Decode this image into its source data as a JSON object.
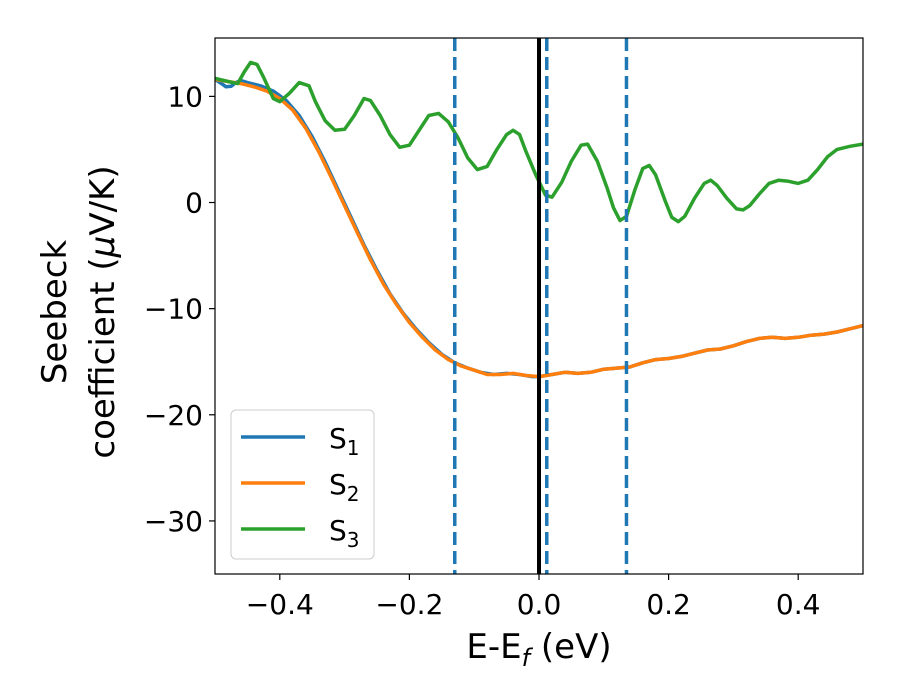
{
  "chart_data": {
    "type": "line",
    "title": "",
    "xlabel": "E-E",
    "xlabel_sub": "f",
    "xlabel_unit": " (eV)",
    "ylabel_line1": "Seebeck",
    "ylabel_line2": "coefficient  (",
    "ylabel_mu": "μ",
    "ylabel_unit_tail": "V/K)",
    "xlim": [
      -0.5,
      0.5
    ],
    "ylim": [
      -35,
      15.5
    ],
    "xticks": [
      -0.4,
      -0.2,
      0.0,
      0.2,
      0.4
    ],
    "xtick_labels": [
      "−0.4",
      "−0.2",
      "0.0",
      "0.2",
      "0.4"
    ],
    "yticks": [
      -30,
      -20,
      -10,
      0,
      10
    ],
    "ytick_labels": [
      "−30",
      "−20",
      "−10",
      "0",
      "10"
    ],
    "legend_position": "lower-left",
    "series": [
      {
        "name": "S",
        "sub": "1",
        "color": "#1f77b4",
        "points": [
          [
            -0.5,
            11.6
          ],
          [
            -0.49,
            11.2
          ],
          [
            -0.483,
            10.9
          ],
          [
            -0.475,
            10.95
          ],
          [
            -0.468,
            11.3
          ],
          [
            -0.46,
            11.5
          ],
          [
            -0.45,
            11.3
          ],
          [
            -0.43,
            11.0
          ],
          [
            -0.41,
            10.5
          ],
          [
            -0.39,
            9.6
          ],
          [
            -0.37,
            8.2
          ],
          [
            -0.35,
            6.2
          ],
          [
            -0.33,
            3.8
          ],
          [
            -0.31,
            1.2
          ],
          [
            -0.29,
            -1.4
          ],
          [
            -0.27,
            -4.0
          ],
          [
            -0.25,
            -6.4
          ],
          [
            -0.23,
            -8.6
          ],
          [
            -0.21,
            -10.4
          ],
          [
            -0.19,
            -11.9
          ],
          [
            -0.17,
            -13.2
          ],
          [
            -0.15,
            -14.3
          ],
          [
            -0.13,
            -15.1
          ],
          [
            -0.11,
            -15.6
          ],
          [
            -0.09,
            -16.0
          ],
          [
            -0.07,
            -16.2
          ],
          [
            -0.05,
            -16.1
          ],
          [
            -0.03,
            -16.2
          ],
          [
            -0.01,
            -16.4
          ],
          [
            0.0,
            -16.4
          ],
          [
            0.02,
            -16.2
          ],
          [
            0.04,
            -16.0
          ],
          [
            0.06,
            -16.1
          ],
          [
            0.08,
            -16.0
          ],
          [
            0.1,
            -15.7
          ],
          [
            0.12,
            -15.6
          ],
          [
            0.14,
            -15.5
          ],
          [
            0.16,
            -15.1
          ],
          [
            0.18,
            -14.8
          ],
          [
            0.2,
            -14.7
          ],
          [
            0.22,
            -14.5
          ],
          [
            0.24,
            -14.2
          ],
          [
            0.26,
            -13.9
          ],
          [
            0.28,
            -13.8
          ],
          [
            0.3,
            -13.5
          ],
          [
            0.32,
            -13.1
          ],
          [
            0.34,
            -12.8
          ],
          [
            0.36,
            -12.7
          ],
          [
            0.38,
            -12.8
          ],
          [
            0.4,
            -12.7
          ],
          [
            0.42,
            -12.5
          ],
          [
            0.44,
            -12.4
          ],
          [
            0.46,
            -12.2
          ],
          [
            0.48,
            -11.9
          ],
          [
            0.5,
            -11.6
          ]
        ]
      },
      {
        "name": "S",
        "sub": "2",
        "color": "#ff7f0e",
        "points": [
          [
            -0.5,
            11.6
          ],
          [
            -0.48,
            11.4
          ],
          [
            -0.46,
            11.2
          ],
          [
            -0.44,
            10.9
          ],
          [
            -0.42,
            10.5
          ],
          [
            -0.4,
            9.8
          ],
          [
            -0.38,
            8.7
          ],
          [
            -0.36,
            7.0
          ],
          [
            -0.34,
            4.8
          ],
          [
            -0.32,
            2.3
          ],
          [
            -0.3,
            -0.3
          ],
          [
            -0.28,
            -2.9
          ],
          [
            -0.26,
            -5.4
          ],
          [
            -0.24,
            -7.7
          ],
          [
            -0.22,
            -9.6
          ],
          [
            -0.2,
            -11.3
          ],
          [
            -0.18,
            -12.7
          ],
          [
            -0.16,
            -13.9
          ],
          [
            -0.14,
            -14.8
          ],
          [
            -0.12,
            -15.4
          ],
          [
            -0.1,
            -15.8
          ],
          [
            -0.08,
            -16.2
          ],
          [
            -0.06,
            -16.2
          ],
          [
            -0.04,
            -16.1
          ],
          [
            -0.02,
            -16.3
          ],
          [
            0.0,
            -16.4
          ],
          [
            0.02,
            -16.2
          ],
          [
            0.04,
            -16.0
          ],
          [
            0.06,
            -16.1
          ],
          [
            0.08,
            -16.0
          ],
          [
            0.1,
            -15.7
          ],
          [
            0.12,
            -15.6
          ],
          [
            0.14,
            -15.5
          ],
          [
            0.16,
            -15.1
          ],
          [
            0.18,
            -14.8
          ],
          [
            0.2,
            -14.7
          ],
          [
            0.22,
            -14.5
          ],
          [
            0.24,
            -14.2
          ],
          [
            0.26,
            -13.9
          ],
          [
            0.28,
            -13.8
          ],
          [
            0.3,
            -13.5
          ],
          [
            0.32,
            -13.1
          ],
          [
            0.34,
            -12.8
          ],
          [
            0.36,
            -12.7
          ],
          [
            0.38,
            -12.8
          ],
          [
            0.4,
            -12.7
          ],
          [
            0.42,
            -12.5
          ],
          [
            0.44,
            -12.4
          ],
          [
            0.46,
            -12.2
          ],
          [
            0.48,
            -11.9
          ],
          [
            0.5,
            -11.6
          ]
        ]
      },
      {
        "name": "S",
        "sub": "3",
        "color": "#2ca02c",
        "points": [
          [
            -0.5,
            11.7
          ],
          [
            -0.48,
            11.4
          ],
          [
            -0.465,
            11.2
          ],
          [
            -0.455,
            12.3
          ],
          [
            -0.445,
            13.2
          ],
          [
            -0.435,
            13.0
          ],
          [
            -0.425,
            11.8
          ],
          [
            -0.41,
            9.8
          ],
          [
            -0.4,
            9.5
          ],
          [
            -0.385,
            10.3
          ],
          [
            -0.37,
            11.3
          ],
          [
            -0.355,
            11.0
          ],
          [
            -0.345,
            9.5
          ],
          [
            -0.33,
            7.7
          ],
          [
            -0.315,
            6.8
          ],
          [
            -0.3,
            6.9
          ],
          [
            -0.285,
            8.2
          ],
          [
            -0.27,
            9.8
          ],
          [
            -0.26,
            9.6
          ],
          [
            -0.245,
            8.2
          ],
          [
            -0.23,
            6.4
          ],
          [
            -0.215,
            5.2
          ],
          [
            -0.2,
            5.4
          ],
          [
            -0.185,
            6.8
          ],
          [
            -0.17,
            8.2
          ],
          [
            -0.155,
            8.4
          ],
          [
            -0.14,
            7.6
          ],
          [
            -0.125,
            6.1
          ],
          [
            -0.11,
            4.2
          ],
          [
            -0.095,
            3.1
          ],
          [
            -0.08,
            3.4
          ],
          [
            -0.065,
            5.0
          ],
          [
            -0.05,
            6.4
          ],
          [
            -0.04,
            6.8
          ],
          [
            -0.03,
            6.4
          ],
          [
            -0.02,
            4.8
          ],
          [
            -0.005,
            2.6
          ],
          [
            0.01,
            0.7
          ],
          [
            0.02,
            0.5
          ],
          [
            0.035,
            1.9
          ],
          [
            0.05,
            3.9
          ],
          [
            0.065,
            5.4
          ],
          [
            0.075,
            5.5
          ],
          [
            0.09,
            3.9
          ],
          [
            0.105,
            1.4
          ],
          [
            0.115,
            -0.5
          ],
          [
            0.125,
            -1.7
          ],
          [
            0.135,
            -1.3
          ],
          [
            0.148,
            1.2
          ],
          [
            0.16,
            3.2
          ],
          [
            0.17,
            3.5
          ],
          [
            0.18,
            2.6
          ],
          [
            0.195,
            0.1
          ],
          [
            0.205,
            -1.4
          ],
          [
            0.215,
            -1.8
          ],
          [
            0.225,
            -1.3
          ],
          [
            0.24,
            0.4
          ],
          [
            0.255,
            1.8
          ],
          [
            0.265,
            2.1
          ],
          [
            0.275,
            1.6
          ],
          [
            0.29,
            0.4
          ],
          [
            0.305,
            -0.6
          ],
          [
            0.315,
            -0.7
          ],
          [
            0.325,
            -0.3
          ],
          [
            0.34,
            0.8
          ],
          [
            0.355,
            1.8
          ],
          [
            0.37,
            2.1
          ],
          [
            0.385,
            2.0
          ],
          [
            0.4,
            1.8
          ],
          [
            0.415,
            2.1
          ],
          [
            0.43,
            3.1
          ],
          [
            0.445,
            4.3
          ],
          [
            0.46,
            5.0
          ],
          [
            0.48,
            5.3
          ],
          [
            0.5,
            5.5
          ]
        ]
      }
    ],
    "vlines": [
      {
        "x": 0.0,
        "style": "solid",
        "color": "#000000"
      },
      {
        "x": -0.13,
        "style": "dashed",
        "color": "#1f77b4"
      },
      {
        "x": 0.012,
        "style": "dashed",
        "color": "#1f77b4"
      },
      {
        "x": 0.135,
        "style": "dashed",
        "color": "#1f77b4"
      }
    ]
  }
}
